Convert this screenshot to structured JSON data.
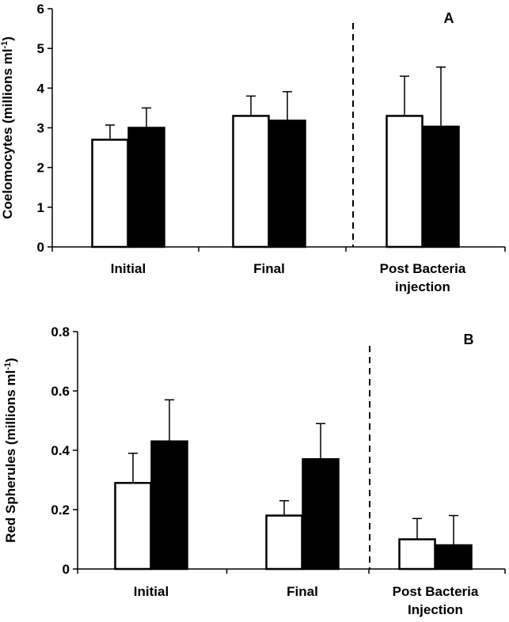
{
  "chart_data": [
    {
      "type": "bar",
      "panel_label": "A",
      "ylabel": "Coelomocytes (millions ml",
      "ylabel_superscript": "-1",
      "ylabel_close": ")",
      "ylim": [
        0,
        6
      ],
      "yticks": [
        "0",
        "1",
        "2",
        "3",
        "4",
        "5",
        "6"
      ],
      "categories": [
        [
          "Initial"
        ],
        [
          "Final"
        ],
        [
          "Post Bacteria",
          "injection"
        ]
      ],
      "series": [
        {
          "fill": "#ffffff",
          "values": [
            2.7,
            3.3,
            3.3
          ],
          "errors": [
            0.37,
            0.5,
            1.0
          ]
        },
        {
          "fill": "#000000",
          "values": [
            3.0,
            3.18,
            3.03
          ],
          "errors": [
            0.5,
            0.73,
            1.5
          ]
        }
      ],
      "divider_after_category": 1,
      "grid": false,
      "legend": "none"
    },
    {
      "type": "bar",
      "panel_label": "B",
      "ylabel": "Red Spherules (millions ml",
      "ylabel_superscript": "-1",
      "ylabel_close": ")",
      "ylim": [
        0,
        0.8
      ],
      "yticks": [
        "0",
        "0.2",
        "0.4",
        "0.6",
        "0.8"
      ],
      "categories": [
        [
          "Initial"
        ],
        [
          "Final"
        ],
        [
          "Post Bacteria",
          "Injection"
        ]
      ],
      "series": [
        {
          "fill": "#ffffff",
          "values": [
            0.29,
            0.18,
            0.1
          ],
          "errors": [
            0.1,
            0.05,
            0.07
          ]
        },
        {
          "fill": "#000000",
          "values": [
            0.43,
            0.37,
            0.08
          ],
          "errors": [
            0.14,
            0.12,
            0.1
          ]
        }
      ],
      "divider_after_category": 1,
      "grid": false,
      "legend": "none"
    }
  ]
}
